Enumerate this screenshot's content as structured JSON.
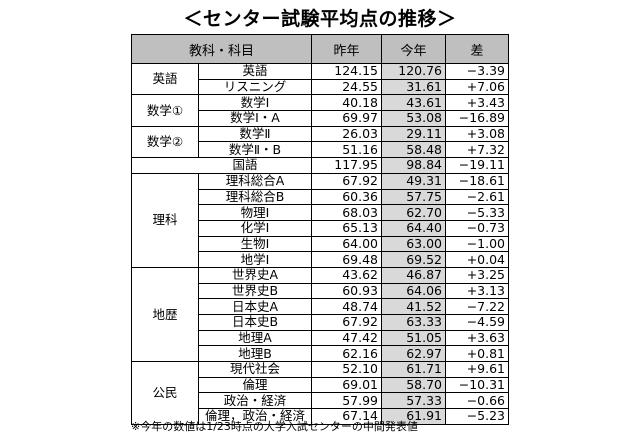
{
  "title": "＜センター試験平均点の推移＞",
  "table": {
    "headers": {
      "subject": "教科・科目",
      "prev": "昨年",
      "this": "今年",
      "diff": "差"
    },
    "groups": [
      {
        "category": "英語",
        "rows": [
          {
            "subject": "英語",
            "prev": "124.15",
            "this": "120.76",
            "diff": "−3.39"
          },
          {
            "subject": "リスニング",
            "prev": "24.55",
            "this": "31.61",
            "diff": "+7.06"
          }
        ]
      },
      {
        "category": "数学①",
        "rows": [
          {
            "subject": "数学Ⅰ",
            "prev": "40.18",
            "this": "43.61",
            "diff": "+3.43"
          },
          {
            "subject": "数学Ⅰ・A",
            "prev": "69.97",
            "this": "53.08",
            "diff": "−16.89"
          }
        ]
      },
      {
        "category": "数学②",
        "rows": [
          {
            "subject": "数学Ⅱ",
            "prev": "26.03",
            "this": "29.11",
            "diff": "+3.08"
          },
          {
            "subject": "数学Ⅱ・B",
            "prev": "51.16",
            "this": "58.48",
            "diff": "+7.32"
          }
        ]
      },
      {
        "category": "",
        "rows": [
          {
            "subject": "国語",
            "prev": "117.95",
            "this": "98.84",
            "diff": "−19.11"
          }
        ]
      },
      {
        "category": "理科",
        "rows": [
          {
            "subject": "理科総合A",
            "prev": "67.92",
            "this": "49.31",
            "diff": "−18.61"
          },
          {
            "subject": "理科総合B",
            "prev": "60.36",
            "this": "57.75",
            "diff": "−2.61"
          },
          {
            "subject": "物理Ⅰ",
            "prev": "68.03",
            "this": "62.70",
            "diff": "−5.33"
          },
          {
            "subject": "化学Ⅰ",
            "prev": "65.13",
            "this": "64.40",
            "diff": "−0.73"
          },
          {
            "subject": "生物Ⅰ",
            "prev": "64.00",
            "this": "63.00",
            "diff": "−1.00"
          },
          {
            "subject": "地学Ⅰ",
            "prev": "69.48",
            "this": "69.52",
            "diff": "+0.04"
          }
        ]
      },
      {
        "category": "地歴",
        "rows": [
          {
            "subject": "世界史A",
            "prev": "43.62",
            "this": "46.87",
            "diff": "+3.25"
          },
          {
            "subject": "世界史B",
            "prev": "60.93",
            "this": "64.06",
            "diff": "+3.13"
          },
          {
            "subject": "日本史A",
            "prev": "48.74",
            "this": "41.52",
            "diff": "−7.22"
          },
          {
            "subject": "日本史B",
            "prev": "67.92",
            "this": "63.33",
            "diff": "−4.59"
          },
          {
            "subject": "地理A",
            "prev": "47.42",
            "this": "51.05",
            "diff": "+3.63"
          },
          {
            "subject": "地理B",
            "prev": "62.16",
            "this": "62.97",
            "diff": "+0.81"
          }
        ]
      },
      {
        "category": "公民",
        "rows": [
          {
            "subject": "現代社会",
            "prev": "52.10",
            "this": "61.71",
            "diff": "+9.61"
          },
          {
            "subject": "倫理",
            "prev": "69.01",
            "this": "58.70",
            "diff": "−10.31"
          },
          {
            "subject": "政治・経済",
            "prev": "57.99",
            "this": "57.33",
            "diff": "−0.66"
          },
          {
            "subject": "倫理，政治・経済",
            "prev": "67.14",
            "this": "61.91",
            "diff": "−5.23"
          }
        ]
      }
    ]
  },
  "footnote": "※今年の数値は1/23時点の大学入試センターの中間発表値"
}
